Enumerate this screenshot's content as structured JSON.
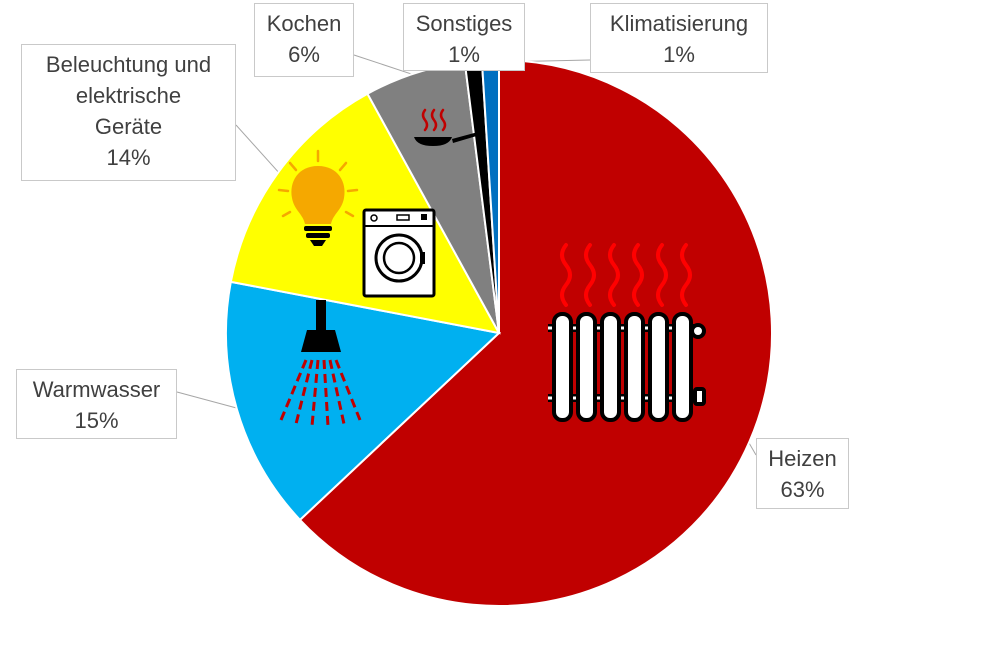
{
  "chart_data": {
    "type": "pie",
    "title": "",
    "slices": [
      {
        "label": "Heizen",
        "value": 63,
        "value_label": "63%",
        "color": "#c00000",
        "icon": "radiator-icon"
      },
      {
        "label": "Warmwasser",
        "value": 15,
        "value_label": "15%",
        "color": "#00b0f0",
        "icon": "shower-icon"
      },
      {
        "label": "Beleuchtung und\nelektrische\nGeräte",
        "value": 14,
        "value_label": "14%",
        "color": "#ffff00",
        "icon": "lightbulb-and-washing-machine-icon"
      },
      {
        "label": "Kochen",
        "value": 6,
        "value_label": "6%",
        "color": "#808080",
        "icon": "frying-pan-icon"
      },
      {
        "label": "Sonstiges",
        "value": 1,
        "value_label": "1%",
        "color": "#000000"
      },
      {
        "label": "Klimatisierung",
        "value": 1,
        "value_label": "1%",
        "color": "#0070c0"
      }
    ],
    "start_angle": "12 o'clock, clockwise",
    "legend": "none (callout labels)"
  }
}
